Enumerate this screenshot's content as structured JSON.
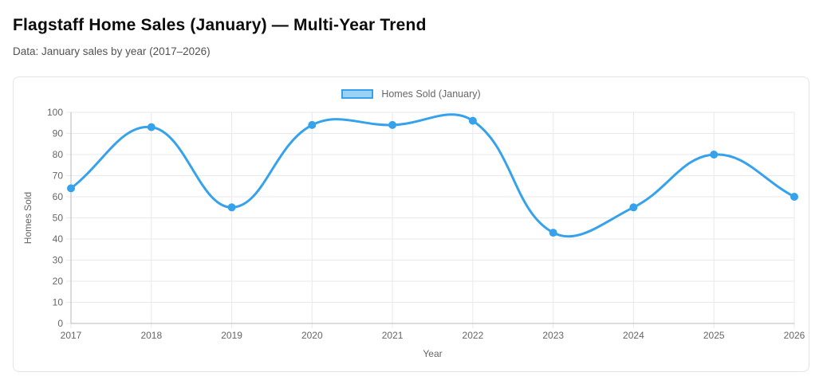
{
  "chart_data": {
    "type": "line",
    "title": "Flagstaff Home Sales (January) — Multi-Year Trend",
    "subtitle": "Data: January sales by year (2017–2026)",
    "categories": [
      "2017",
      "2018",
      "2019",
      "2020",
      "2021",
      "2022",
      "2023",
      "2024",
      "2025",
      "2026"
    ],
    "series": [
      {
        "name": "Homes Sold (January)",
        "values": [
          64,
          93,
          55,
          94,
          94,
          96,
          43,
          55,
          80,
          60
        ]
      }
    ],
    "xlabel": "Year",
    "ylabel": "Homes Sold",
    "ylim": [
      0,
      100
    ],
    "ytick_step": 10,
    "legend_position": "top",
    "grid": true,
    "line_tension": 0.4,
    "colors": {
      "line": "#36A2EB",
      "point": "#36A2EB",
      "legend_fill": "#9BD1F5",
      "grid_line": "#e9e9ec",
      "axis_border": "#b9b9bf",
      "tick_text": "#666666"
    }
  }
}
